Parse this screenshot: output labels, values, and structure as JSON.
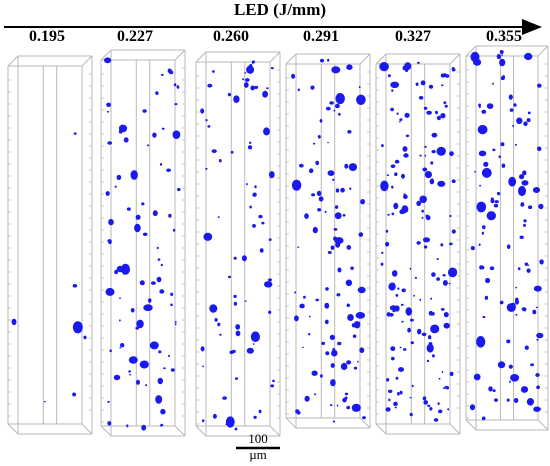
{
  "axis": {
    "title": "LED (J/mm)"
  },
  "columns": [
    {
      "id": "col-1",
      "value": "0.195",
      "porosity": 0.02
    },
    {
      "id": "col-2",
      "value": "0.227",
      "porosity": 0.55
    },
    {
      "id": "col-3",
      "value": "0.260",
      "porosity": 0.45
    },
    {
      "id": "col-4",
      "value": "0.291",
      "porosity": 0.65
    },
    {
      "id": "col-5",
      "value": "0.327",
      "porosity": 1.0
    },
    {
      "id": "col-6",
      "value": "0.355",
      "porosity": 0.7
    }
  ],
  "scale_bar": {
    "label": "100 µm"
  },
  "colors": {
    "pore": "#1a1aee",
    "frame": "#b8b8b8",
    "axis": "#000000"
  }
}
